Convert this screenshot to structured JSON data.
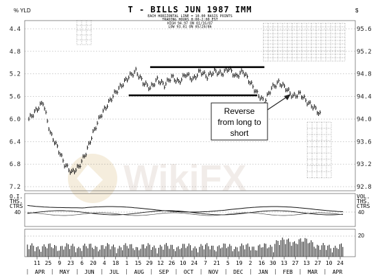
{
  "chart_data": {
    "type": "line",
    "title": "T - BILLS JUN 1987 IMM",
    "subtitle_lines": [
      "EACH HORIZONTAL LINE = 10.00 BASIS POINTS",
      "TRADING HOURS 8:00-2:00 EST",
      "HIGH 94.97 ON 01/16/87",
      "LOW 93.01 ON 05/20/86"
    ],
    "left_axis_label": "% YLD",
    "right_axis_label": "$",
    "yield_ticks": [
      "4.4",
      "4.8",
      "5.2",
      "5.6",
      "6.0",
      "6.4",
      "6.8",
      "7.2"
    ],
    "price_ticks": [
      "95.6",
      "95.2",
      "94.8",
      "94.4",
      "94.0",
      "93.6",
      "93.2",
      "92.8"
    ],
    "price_range": [
      92.8,
      95.6
    ],
    "x_tick_labels": [
      "11",
      "25",
      "9",
      "23",
      "6",
      "20",
      "4",
      "18",
      "1",
      "15",
      "29",
      "12",
      "26",
      "10",
      "24",
      "7",
      "21",
      "5",
      "19",
      "2",
      "16",
      "30",
      "13",
      "27",
      "13",
      "27",
      "10",
      "24"
    ],
    "month_labels": [
      "APR",
      "MAY",
      "JUN",
      "JUL",
      "AUG",
      "SEP",
      "OCT",
      "NOV",
      "DEC",
      "JAN",
      "FEB",
      "MAR",
      "APR"
    ],
    "price_series": [
      {
        "week": 0,
        "price": 94.0
      },
      {
        "week": 1,
        "price": 94.15
      },
      {
        "week": 2,
        "price": 94.3
      },
      {
        "week": 3,
        "price": 93.75
      },
      {
        "week": 4,
        "price": 93.5
      },
      {
        "week": 5,
        "price": 93.2
      },
      {
        "week": 6,
        "price": 93.05
      },
      {
        "week": 7,
        "price": 93.15
      },
      {
        "week": 8,
        "price": 93.4
      },
      {
        "week": 9,
        "price": 93.75
      },
      {
        "week": 10,
        "price": 94.05
      },
      {
        "week": 11,
        "price": 94.25
      },
      {
        "week": 12,
        "price": 94.45
      },
      {
        "week": 13,
        "price": 94.6
      },
      {
        "week": 14,
        "price": 94.75
      },
      {
        "week": 15,
        "price": 94.85
      },
      {
        "week": 16,
        "price": 94.65
      },
      {
        "week": 17,
        "price": 94.55
      },
      {
        "week": 18,
        "price": 94.7
      },
      {
        "week": 19,
        "price": 94.6
      },
      {
        "week": 20,
        "price": 94.75
      },
      {
        "week": 21,
        "price": 94.65
      },
      {
        "week": 22,
        "price": 94.8
      },
      {
        "week": 23,
        "price": 94.7
      },
      {
        "week": 24,
        "price": 94.85
      },
      {
        "week": 25,
        "price": 94.75
      },
      {
        "week": 26,
        "price": 94.85
      },
      {
        "week": 27,
        "price": 94.8
      },
      {
        "week": 28,
        "price": 94.9
      },
      {
        "week": 29,
        "price": 94.75
      },
      {
        "week": 30,
        "price": 94.85
      },
      {
        "week": 31,
        "price": 94.65
      },
      {
        "week": 32,
        "price": 94.45
      },
      {
        "week": 33,
        "price": 94.3
      },
      {
        "week": 34,
        "price": 94.55
      },
      {
        "week": 35,
        "price": 94.65
      },
      {
        "week": 36,
        "price": 94.55
      },
      {
        "week": 37,
        "price": 94.4
      },
      {
        "week": 38,
        "price": 94.45
      },
      {
        "week": 39,
        "price": 94.3
      },
      {
        "week": 40,
        "price": 94.2
      },
      {
        "week": 41,
        "price": 94.05
      }
    ],
    "trendlines": [
      {
        "from_week": 17,
        "to_week": 33,
        "price": 94.92
      },
      {
        "from_week": 14,
        "to_week": 32,
        "price": 94.42
      }
    ],
    "annotation": "Reverse from long to short",
    "oi_panel_label_left": [
      "O.I.",
      "THS.",
      "CTRS"
    ],
    "oi_panel_label_right": [
      "VOL.",
      "THS.",
      "CTRS"
    ],
    "oi_ticks": [
      "40",
      "40"
    ],
    "volume_tick": "20",
    "watermark": "WikiFX",
    "grid": true
  }
}
